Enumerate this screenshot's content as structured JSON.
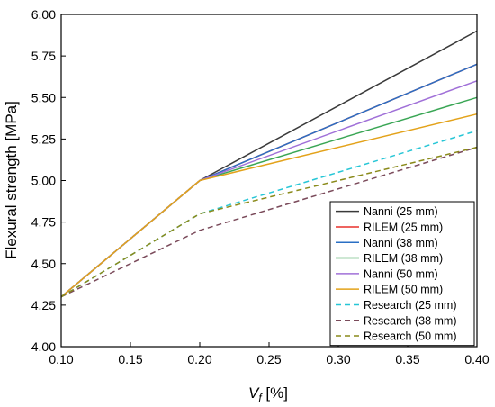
{
  "chart_data": {
    "type": "line",
    "title": "",
    "xlabel_main": "V",
    "xlabel_sub": "f",
    "xlabel_unit": " [%]",
    "ylabel": "Flexural strength [MPa]",
    "xlim": [
      0.1,
      0.4
    ],
    "ylim": [
      4.0,
      6.0
    ],
    "x_ticks": [
      "0.10",
      "0.15",
      "0.20",
      "0.25",
      "0.30",
      "0.35",
      "0.40"
    ],
    "y_ticks": [
      "4.00",
      "4.25",
      "4.50",
      "4.75",
      "5.00",
      "5.25",
      "5.50",
      "5.75",
      "6.00"
    ],
    "grid": false,
    "legend_position": "bottom-right",
    "x": [
      0.1,
      0.2,
      0.4
    ],
    "series": [
      {
        "name": "Nanni (25 mm)",
        "color": "#3a3a3a",
        "dashed": false,
        "values": [
          4.3,
          5.0,
          5.9
        ]
      },
      {
        "name": "RILEM (25 mm)",
        "color": "#e8312b",
        "dashed": false,
        "values": [
          4.3,
          5.0,
          5.7
        ]
      },
      {
        "name": "Nanni (38 mm)",
        "color": "#2a6fc4",
        "dashed": false,
        "values": [
          4.3,
          5.0,
          5.7
        ]
      },
      {
        "name": "RILEM (38 mm)",
        "color": "#3aa655",
        "dashed": false,
        "values": [
          4.3,
          5.0,
          5.5
        ]
      },
      {
        "name": "Nanni (50 mm)",
        "color": "#a070d8",
        "dashed": false,
        "values": [
          4.3,
          5.0,
          5.6
        ]
      },
      {
        "name": "RILEM (50 mm)",
        "color": "#e3a21a",
        "dashed": false,
        "values": [
          4.3,
          5.0,
          5.4
        ]
      },
      {
        "name": "Research (25 mm)",
        "color": "#26c6d6",
        "dashed": true,
        "values": [
          4.3,
          4.8,
          5.3
        ]
      },
      {
        "name": "Research (38 mm)",
        "color": "#7a4a5a",
        "dashed": true,
        "values": [
          4.3,
          4.7,
          5.2
        ]
      },
      {
        "name": "Research (50 mm)",
        "color": "#8a8a1a",
        "dashed": true,
        "values": [
          4.3,
          4.8,
          5.2
        ]
      }
    ]
  }
}
